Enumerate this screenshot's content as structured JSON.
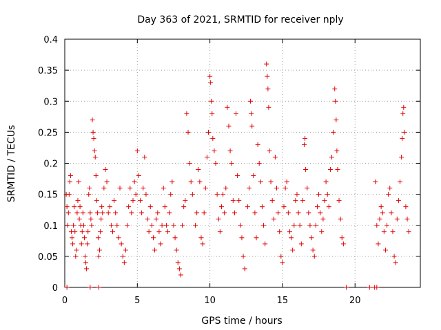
{
  "chart_data": {
    "type": "scatter",
    "title": "Day 363 of 2021, SRMTID for receiver nply",
    "xlabel": "GPS time / hours",
    "ylabel": "SRMTID / TECUs",
    "xlim": [
      0,
      24.5
    ],
    "ylim": [
      0,
      0.4
    ],
    "xticks": [
      0,
      5,
      10,
      15,
      20
    ],
    "xtick_labels": [
      "0",
      "5",
      "10",
      "15",
      "20"
    ],
    "yticks": [
      0,
      0.05,
      0.1,
      0.15,
      0.2,
      0.25,
      0.3,
      0.35,
      0.4
    ],
    "ytick_labels": [
      "0",
      "0.05",
      "0.1",
      "0.15",
      "0.2",
      "0.25",
      "0.3",
      "0.35",
      "0.4"
    ],
    "grid": true,
    "marker": "+",
    "color": "#e00000",
    "series": [
      {
        "name": "SRMTID",
        "points": [
          [
            0.1,
            0.15
          ],
          [
            0.15,
            0.13
          ],
          [
            0.2,
            0.1
          ],
          [
            0.25,
            0.12
          ],
          [
            0.3,
            0.15
          ],
          [
            0.35,
            0.17
          ],
          [
            0.4,
            0.18
          ],
          [
            0.45,
            0.09
          ],
          [
            0.5,
            0.08
          ],
          [
            0.55,
            0.07
          ],
          [
            0.6,
            0.1
          ],
          [
            0.65,
            0.13
          ],
          [
            0.7,
            0.09
          ],
          [
            0.75,
            0.05
          ],
          [
            0.8,
            0.06
          ],
          [
            0.85,
            0.12
          ],
          [
            0.9,
            0.14
          ],
          [
            0.95,
            0.17
          ],
          [
            1.0,
            0.11
          ],
          [
            1.05,
            0.13
          ],
          [
            1.1,
            0.1
          ],
          [
            1.15,
            0.07
          ],
          [
            1.2,
            0.09
          ],
          [
            1.25,
            0.12
          ],
          [
            1.3,
            0.1
          ],
          [
            1.35,
            0.08
          ],
          [
            1.4,
            0.05
          ],
          [
            1.45,
            0.04
          ],
          [
            1.5,
            0.03
          ],
          [
            1.55,
            0.07
          ],
          [
            1.6,
            0.09
          ],
          [
            1.65,
            0.15
          ],
          [
            1.7,
            0.16
          ],
          [
            1.75,
            0.12
          ],
          [
            1.8,
            0.11
          ],
          [
            1.85,
            0.1
          ],
          [
            1.9,
            0.27
          ],
          [
            1.95,
            0.25
          ],
          [
            2.0,
            0.24
          ],
          [
            2.05,
            0.22
          ],
          [
            2.1,
            0.21
          ],
          [
            2.15,
            0.18
          ],
          [
            2.2,
            0.14
          ],
          [
            2.25,
            0.12
          ],
          [
            2.3,
            0.08
          ],
          [
            2.35,
            0.05
          ],
          [
            2.4,
            0.06
          ],
          [
            2.45,
            0.09
          ],
          [
            2.5,
            0.11
          ],
          [
            2.55,
            0.13
          ],
          [
            2.6,
            0.12
          ],
          [
            2.7,
            0.16
          ],
          [
            2.8,
            0.19
          ],
          [
            2.9,
            0.17
          ],
          [
            3.0,
            0.12
          ],
          [
            3.1,
            0.13
          ],
          [
            3.2,
            0.1
          ],
          [
            3.3,
            0.09
          ],
          [
            3.4,
            0.14
          ],
          [
            3.5,
            0.12
          ],
          [
            3.6,
            0.1
          ],
          [
            3.7,
            0.08
          ],
          [
            3.8,
            0.16
          ],
          [
            3.9,
            0.07
          ],
          [
            4.0,
            0.05
          ],
          [
            4.1,
            0.04
          ],
          [
            4.2,
            0.06
          ],
          [
            4.3,
            0.1
          ],
          [
            4.4,
            0.13
          ],
          [
            4.5,
            0.16
          ],
          [
            4.6,
            0.12
          ],
          [
            4.7,
            0.14
          ],
          [
            4.8,
            0.17
          ],
          [
            4.9,
            0.15
          ],
          [
            5.0,
            0.22
          ],
          [
            5.1,
            0.18
          ],
          [
            5.2,
            0.14
          ],
          [
            5.3,
            0.12
          ],
          [
            5.4,
            0.16
          ],
          [
            5.5,
            0.21
          ],
          [
            5.6,
            0.15
          ],
          [
            5.7,
            0.11
          ],
          [
            5.8,
            0.09
          ],
          [
            5.9,
            0.13
          ],
          [
            6.0,
            0.1
          ],
          [
            6.1,
            0.08
          ],
          [
            6.2,
            0.06
          ],
          [
            6.3,
            0.11
          ],
          [
            6.4,
            0.12
          ],
          [
            6.5,
            0.09
          ],
          [
            6.6,
            0.07
          ],
          [
            6.7,
            0.1
          ],
          [
            6.8,
            0.16
          ],
          [
            6.9,
            0.13
          ],
          [
            7.0,
            0.1
          ],
          [
            7.1,
            0.09
          ],
          [
            7.2,
            0.12
          ],
          [
            7.3,
            0.15
          ],
          [
            7.4,
            0.17
          ],
          [
            7.5,
            0.1
          ],
          [
            7.6,
            0.08
          ],
          [
            7.7,
            0.06
          ],
          [
            7.8,
            0.04
          ],
          [
            7.9,
            0.03
          ],
          [
            8.0,
            0.02
          ],
          [
            8.1,
            0.1
          ],
          [
            8.2,
            0.13
          ],
          [
            8.3,
            0.14
          ],
          [
            8.4,
            0.28
          ],
          [
            8.5,
            0.25
          ],
          [
            8.6,
            0.2
          ],
          [
            8.7,
            0.17
          ],
          [
            8.8,
            0.15
          ],
          [
            9.0,
            0.1
          ],
          [
            9.1,
            0.12
          ],
          [
            9.2,
            0.19
          ],
          [
            9.3,
            0.17
          ],
          [
            9.4,
            0.08
          ],
          [
            9.5,
            0.07
          ],
          [
            9.6,
            0.12
          ],
          [
            9.7,
            0.16
          ],
          [
            9.8,
            0.21
          ],
          [
            9.9,
            0.25
          ],
          [
            10.0,
            0.34
          ],
          [
            10.05,
            0.33
          ],
          [
            10.1,
            0.3
          ],
          [
            10.15,
            0.28
          ],
          [
            10.2,
            0.24
          ],
          [
            10.3,
            0.22
          ],
          [
            10.4,
            0.2
          ],
          [
            10.5,
            0.15
          ],
          [
            10.6,
            0.11
          ],
          [
            10.7,
            0.09
          ],
          [
            10.8,
            0.13
          ],
          [
            10.9,
            0.15
          ],
          [
            11.0,
            0.12
          ],
          [
            11.1,
            0.16
          ],
          [
            11.2,
            0.29
          ],
          [
            11.3,
            0.26
          ],
          [
            11.4,
            0.22
          ],
          [
            11.5,
            0.2
          ],
          [
            11.6,
            0.14
          ],
          [
            11.7,
            0.12
          ],
          [
            11.8,
            0.28
          ],
          [
            11.9,
            0.18
          ],
          [
            12.0,
            0.14
          ],
          [
            12.1,
            0.1
          ],
          [
            12.2,
            0.08
          ],
          [
            12.3,
            0.05
          ],
          [
            12.4,
            0.03
          ],
          [
            12.6,
            0.13
          ],
          [
            12.7,
            0.16
          ],
          [
            12.8,
            0.3
          ],
          [
            12.85,
            0.28
          ],
          [
            12.9,
            0.26
          ],
          [
            13.0,
            0.18
          ],
          [
            13.1,
            0.12
          ],
          [
            13.2,
            0.08
          ],
          [
            13.3,
            0.23
          ],
          [
            13.4,
            0.2
          ],
          [
            13.5,
            0.17
          ],
          [
            13.6,
            0.13
          ],
          [
            13.7,
            0.1
          ],
          [
            13.8,
            0.07
          ],
          [
            13.9,
            0.36
          ],
          [
            13.95,
            0.34
          ],
          [
            14.0,
            0.32
          ],
          [
            14.05,
            0.29
          ],
          [
            14.1,
            0.22
          ],
          [
            14.2,
            0.17
          ],
          [
            14.3,
            0.14
          ],
          [
            14.4,
            0.11
          ],
          [
            14.5,
            0.21
          ],
          [
            14.6,
            0.16
          ],
          [
            14.7,
            0.12
          ],
          [
            14.8,
            0.09
          ],
          [
            14.9,
            0.05
          ],
          [
            15.0,
            0.04
          ],
          [
            15.1,
            0.13
          ],
          [
            15.2,
            0.16
          ],
          [
            15.3,
            0.17
          ],
          [
            15.4,
            0.12
          ],
          [
            15.5,
            0.09
          ],
          [
            15.6,
            0.08
          ],
          [
            15.7,
            0.06
          ],
          [
            15.8,
            0.1
          ],
          [
            15.9,
            0.14
          ],
          [
            16.0,
            0.15
          ],
          [
            16.1,
            0.12
          ],
          [
            16.2,
            0.1
          ],
          [
            16.3,
            0.07
          ],
          [
            16.4,
            0.14
          ],
          [
            16.5,
            0.23
          ],
          [
            16.55,
            0.24
          ],
          [
            16.6,
            0.19
          ],
          [
            16.7,
            0.16
          ],
          [
            16.8,
            0.12
          ],
          [
            16.9,
            0.1
          ],
          [
            17.0,
            0.08
          ],
          [
            17.1,
            0.06
          ],
          [
            17.2,
            0.05
          ],
          [
            17.3,
            0.1
          ],
          [
            17.4,
            0.13
          ],
          [
            17.5,
            0.15
          ],
          [
            17.6,
            0.12
          ],
          [
            17.7,
            0.09
          ],
          [
            17.8,
            0.11
          ],
          [
            17.9,
            0.14
          ],
          [
            18.0,
            0.17
          ],
          [
            18.1,
            0.15
          ],
          [
            18.2,
            0.13
          ],
          [
            18.3,
            0.19
          ],
          [
            18.4,
            0.21
          ],
          [
            18.5,
            0.25
          ],
          [
            18.6,
            0.32
          ],
          [
            18.65,
            0.3
          ],
          [
            18.7,
            0.27
          ],
          [
            18.75,
            0.22
          ],
          [
            18.8,
            0.19
          ],
          [
            18.9,
            0.14
          ],
          [
            19.0,
            0.11
          ],
          [
            19.1,
            0.08
          ],
          [
            19.2,
            0.07
          ],
          [
            21.4,
            0.17
          ],
          [
            21.5,
            0.1
          ],
          [
            21.6,
            0.07
          ],
          [
            21.7,
            0.11
          ],
          [
            21.8,
            0.13
          ],
          [
            21.9,
            0.12
          ],
          [
            22.0,
            0.09
          ],
          [
            22.1,
            0.06
          ],
          [
            22.2,
            0.1
          ],
          [
            22.3,
            0.15
          ],
          [
            22.4,
            0.16
          ],
          [
            22.5,
            0.12
          ],
          [
            22.6,
            0.09
          ],
          [
            22.7,
            0.05
          ],
          [
            22.8,
            0.04
          ],
          [
            22.9,
            0.11
          ],
          [
            23.0,
            0.14
          ],
          [
            23.1,
            0.17
          ],
          [
            23.2,
            0.21
          ],
          [
            23.25,
            0.24
          ],
          [
            23.3,
            0.28
          ],
          [
            23.35,
            0.29
          ],
          [
            23.4,
            0.25
          ],
          [
            23.5,
            0.13
          ],
          [
            23.6,
            0.11
          ],
          [
            23.7,
            0.09
          ],
          [
            0.15,
            0.0
          ],
          [
            1.75,
            0.0
          ],
          [
            2.35,
            0.0
          ],
          [
            19.4,
            0.0
          ],
          [
            21.0,
            0.0
          ],
          [
            21.35,
            0.0
          ],
          [
            21.5,
            0.0
          ]
        ]
      }
    ]
  }
}
